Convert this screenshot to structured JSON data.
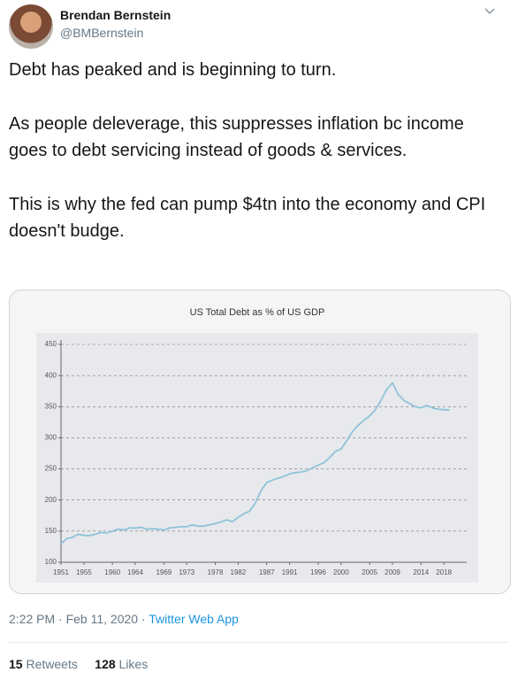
{
  "tweet": {
    "author": {
      "name": "Brendan Bernstein",
      "handle": "@BMBernstein"
    },
    "paragraphs": [
      "Debt has peaked and is beginning to turn.",
      "As people deleverage, this suppresses inflation bc income goes to debt servicing instead of goods & services.",
      "This is why the fed can pump $4tn into the economy and CPI doesn't budge."
    ],
    "timestamp": "2:22 PM · Feb 11, 2020",
    "separator": "·",
    "source": "Twitter Web App",
    "stats": {
      "retweets": {
        "count": "15",
        "label": "Retweets"
      },
      "likes": {
        "count": "128",
        "label": "Likes"
      }
    }
  },
  "chart_data": {
    "type": "line",
    "title": "US Total Debt as % of US GDP",
    "color": "#8ec3d8",
    "grid": true,
    "x": [
      1951,
      1952,
      1953,
      1954,
      1955,
      1956,
      1957,
      1958,
      1959,
      1960,
      1961,
      1962,
      1963,
      1964,
      1965,
      1966,
      1967,
      1968,
      1969,
      1970,
      1971,
      1972,
      1973,
      1974,
      1975,
      1976,
      1977,
      1978,
      1979,
      1980,
      1981,
      1982,
      1983,
      1984,
      1985,
      1986,
      1987,
      1988,
      1989,
      1990,
      1991,
      1992,
      1993,
      1994,
      1995,
      1996,
      1997,
      1998,
      1999,
      2000,
      2001,
      2002,
      2003,
      2004,
      2005,
      2006,
      2007,
      2008,
      2009,
      2010,
      2011,
      2012,
      2013,
      2014,
      2015,
      2016,
      2017,
      2018,
      2019
    ],
    "values": [
      130,
      138,
      140,
      145,
      143,
      143,
      145,
      148,
      147,
      150,
      153,
      152,
      155,
      155,
      156,
      153,
      154,
      153,
      152,
      155,
      156,
      157,
      157,
      160,
      158,
      158,
      160,
      162,
      165,
      168,
      165,
      172,
      178,
      182,
      195,
      215,
      228,
      232,
      235,
      238,
      242,
      244,
      245,
      247,
      252,
      256,
      260,
      268,
      278,
      282,
      295,
      310,
      320,
      328,
      335,
      345,
      360,
      378,
      388,
      370,
      360,
      355,
      350,
      348,
      352,
      348,
      346,
      345,
      345
    ],
    "xlim": [
      1951,
      2022
    ],
    "xticks": [
      1951,
      1955,
      1960,
      1964,
      1969,
      1973,
      1978,
      1982,
      1987,
      1991,
      1996,
      2000,
      2005,
      2009,
      2014,
      2018
    ],
    "ylim": [
      100,
      450
    ],
    "yticks": [
      100,
      150,
      200,
      250,
      300,
      350,
      400,
      450
    ]
  }
}
